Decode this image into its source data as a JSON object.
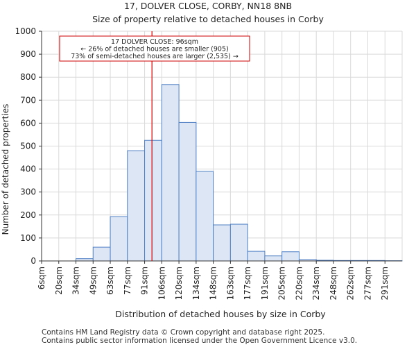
{
  "chart_data": {
    "type": "bar",
    "title": "17, DOLVER CLOSE, CORBY, NN18 8NB",
    "subtitle": "Size of property relative to detached houses in Corby",
    "xlabel": "Distribution of detached houses by size in Corby",
    "ylabel": "Number of detached properties",
    "categories": [
      "6sqm",
      "20sqm",
      "34sqm",
      "49sqm",
      "63sqm",
      "77sqm",
      "91sqm",
      "106sqm",
      "120sqm",
      "134sqm",
      "148sqm",
      "163sqm",
      "177sqm",
      "191sqm",
      "205sqm",
      "220sqm",
      "234sqm",
      "248sqm",
      "262sqm",
      "277sqm",
      "291sqm"
    ],
    "values": [
      0,
      0,
      10,
      60,
      193,
      480,
      525,
      768,
      603,
      390,
      157,
      160,
      42,
      22,
      40,
      6,
      3,
      2,
      2,
      2,
      1
    ],
    "ylim": [
      0,
      1000
    ],
    "yticks": [
      0,
      100,
      200,
      300,
      400,
      500,
      600,
      700,
      800,
      900,
      1000
    ],
    "bar_color": "#dce6f5",
    "bar_edge_color": "#4f7fc4",
    "marker": {
      "value": 96,
      "color": "#cc0000",
      "annotation": [
        "17 DOLVER CLOSE: 96sqm",
        "← 26% of detached houses are smaller (905)",
        "73% of semi-detached houses are larger (2,535) →"
      ]
    }
  },
  "footer": {
    "line1": "Contains HM Land Registry data © Crown copyright and database right 2025.",
    "line2": "Contains public sector information licensed under the Open Government Licence v3.0."
  }
}
